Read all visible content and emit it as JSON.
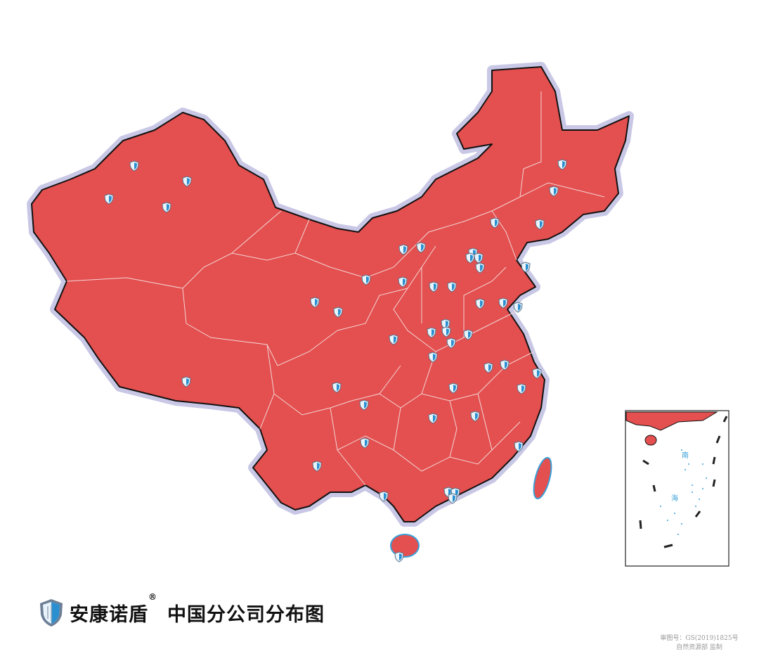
{
  "title": {
    "brand": "安康诺盾",
    "registered_mark": "®",
    "subtitle": "中国分公司分布图",
    "logo_icon": "shield-logo-icon"
  },
  "map": {
    "fill_color": "#e44f4f",
    "border_color": "#111111",
    "halo_color": "#c8c8e6",
    "province_line_color": "#f3d6d6",
    "sea_island_color": "#3aa0d8",
    "marker_icon": "shield-marker-icon",
    "inset": {
      "label_south": "南",
      "label_sea": "海"
    }
  },
  "footer": {
    "approval_number": "审图号：GS(2019)1825号",
    "supervisor": "自然资源部 监制"
  }
}
